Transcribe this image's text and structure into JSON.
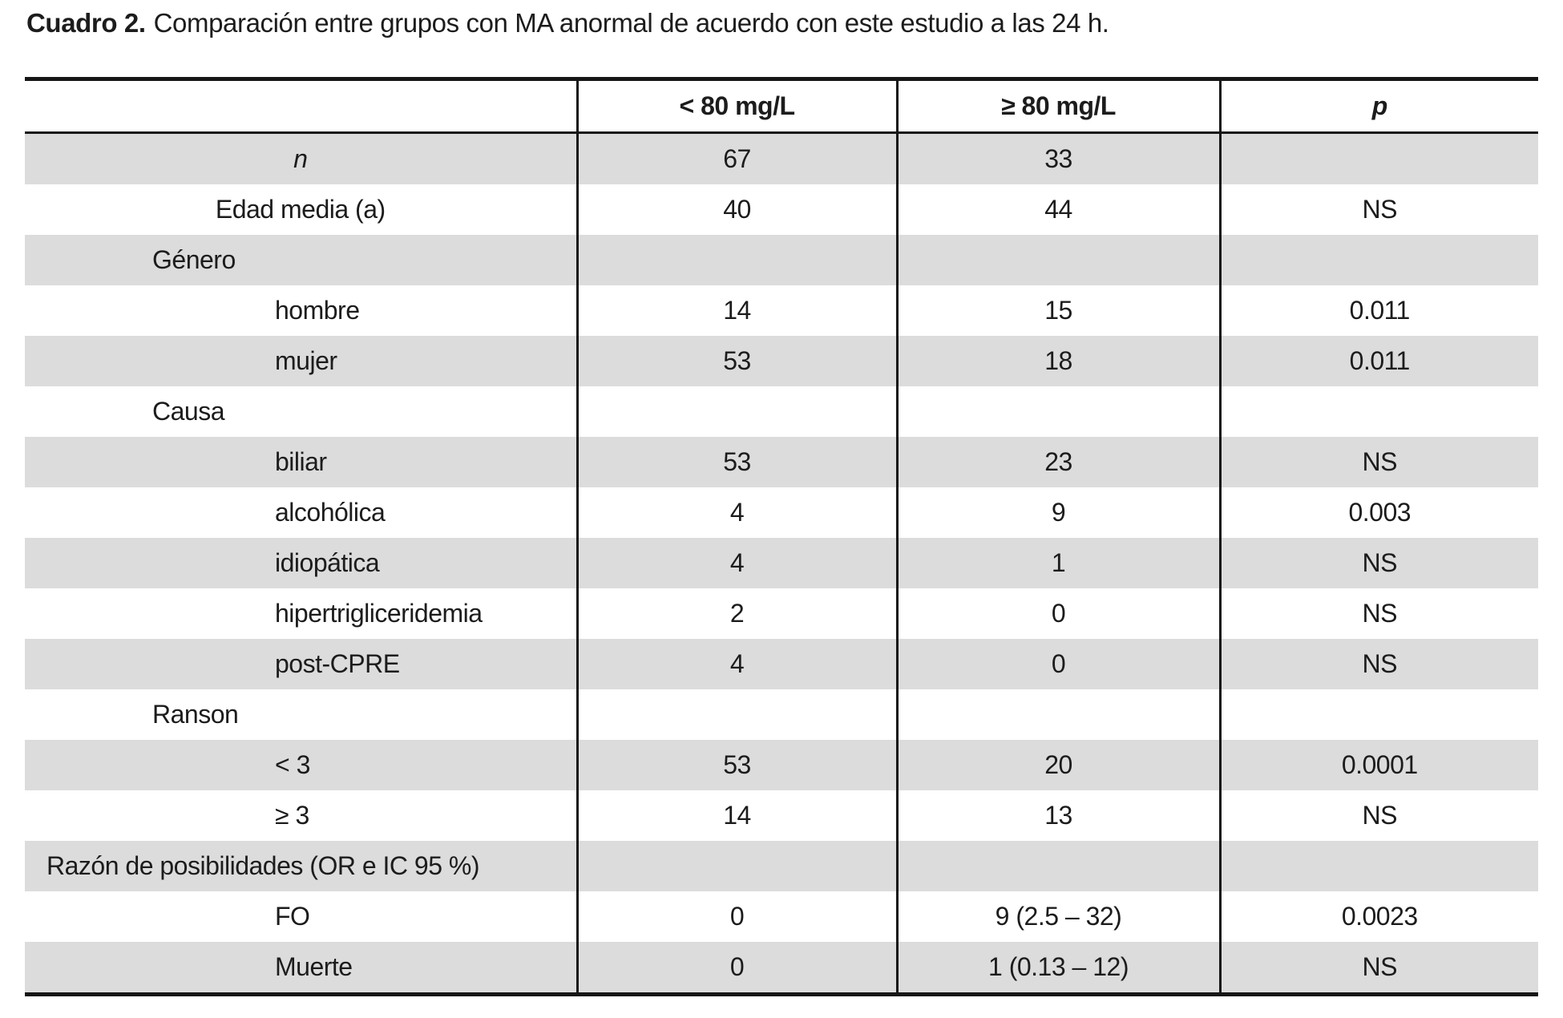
{
  "title": {
    "label": "Cuadro 2.",
    "text": "Comparación entre grupos con MA anormal de acuerdo con este estudio a las 24 h."
  },
  "table": {
    "columns": [
      "",
      "< 80 mg/L",
      "≥ 80 mg/L",
      "p"
    ],
    "rows": [
      {
        "label": "n",
        "indent": "center",
        "italic": true,
        "values": [
          "67",
          "33",
          ""
        ]
      },
      {
        "label": "Edad media (a)",
        "indent": "center",
        "italic": false,
        "values": [
          "40",
          "44",
          "NS"
        ]
      },
      {
        "label": "Género",
        "indent": "group",
        "italic": false,
        "values": [
          "",
          "",
          ""
        ]
      },
      {
        "label": "hombre",
        "indent": "item",
        "italic": false,
        "values": [
          "14",
          "15",
          "0.011"
        ]
      },
      {
        "label": "mujer",
        "indent": "item",
        "italic": false,
        "values": [
          "53",
          "18",
          "0.011"
        ]
      },
      {
        "label": "Causa",
        "indent": "group",
        "italic": false,
        "values": [
          "",
          "",
          ""
        ]
      },
      {
        "label": "biliar",
        "indent": "item",
        "italic": false,
        "values": [
          "53",
          "23",
          "NS"
        ]
      },
      {
        "label": "alcohólica",
        "indent": "item",
        "italic": false,
        "values": [
          "4",
          "9",
          "0.003"
        ]
      },
      {
        "label": "idiopática",
        "indent": "item",
        "italic": false,
        "values": [
          "4",
          "1",
          "NS"
        ]
      },
      {
        "label": "hipertrigliceridemia",
        "indent": "item",
        "italic": false,
        "values": [
          "2",
          "0",
          "NS"
        ]
      },
      {
        "label": "post-CPRE",
        "indent": "item",
        "italic": false,
        "values": [
          "4",
          "0",
          "NS"
        ]
      },
      {
        "label": "Ranson",
        "indent": "group",
        "italic": false,
        "values": [
          "",
          "",
          ""
        ]
      },
      {
        "label": "< 3",
        "indent": "item",
        "italic": false,
        "values": [
          "53",
          "20",
          "0.0001"
        ]
      },
      {
        "label": "≥ 3",
        "indent": "item",
        "italic": false,
        "values": [
          "14",
          "13",
          "NS"
        ]
      },
      {
        "label": "Razón de posibilidades (OR e IC 95 %)",
        "indent": "group-wide",
        "italic": false,
        "values": [
          "",
          "",
          ""
        ]
      },
      {
        "label": "FO",
        "indent": "item",
        "italic": false,
        "values": [
          "0",
          "9 (2.5 – 32)",
          "0.0023"
        ]
      },
      {
        "label": "Muerte",
        "indent": "item",
        "italic": false,
        "values": [
          "0",
          "1 (0.13 – 12)",
          "NS"
        ]
      }
    ],
    "colors": {
      "row_alt_bg": "#dcdcdc",
      "rule": "#161616",
      "text": "#1c1c1c"
    }
  }
}
